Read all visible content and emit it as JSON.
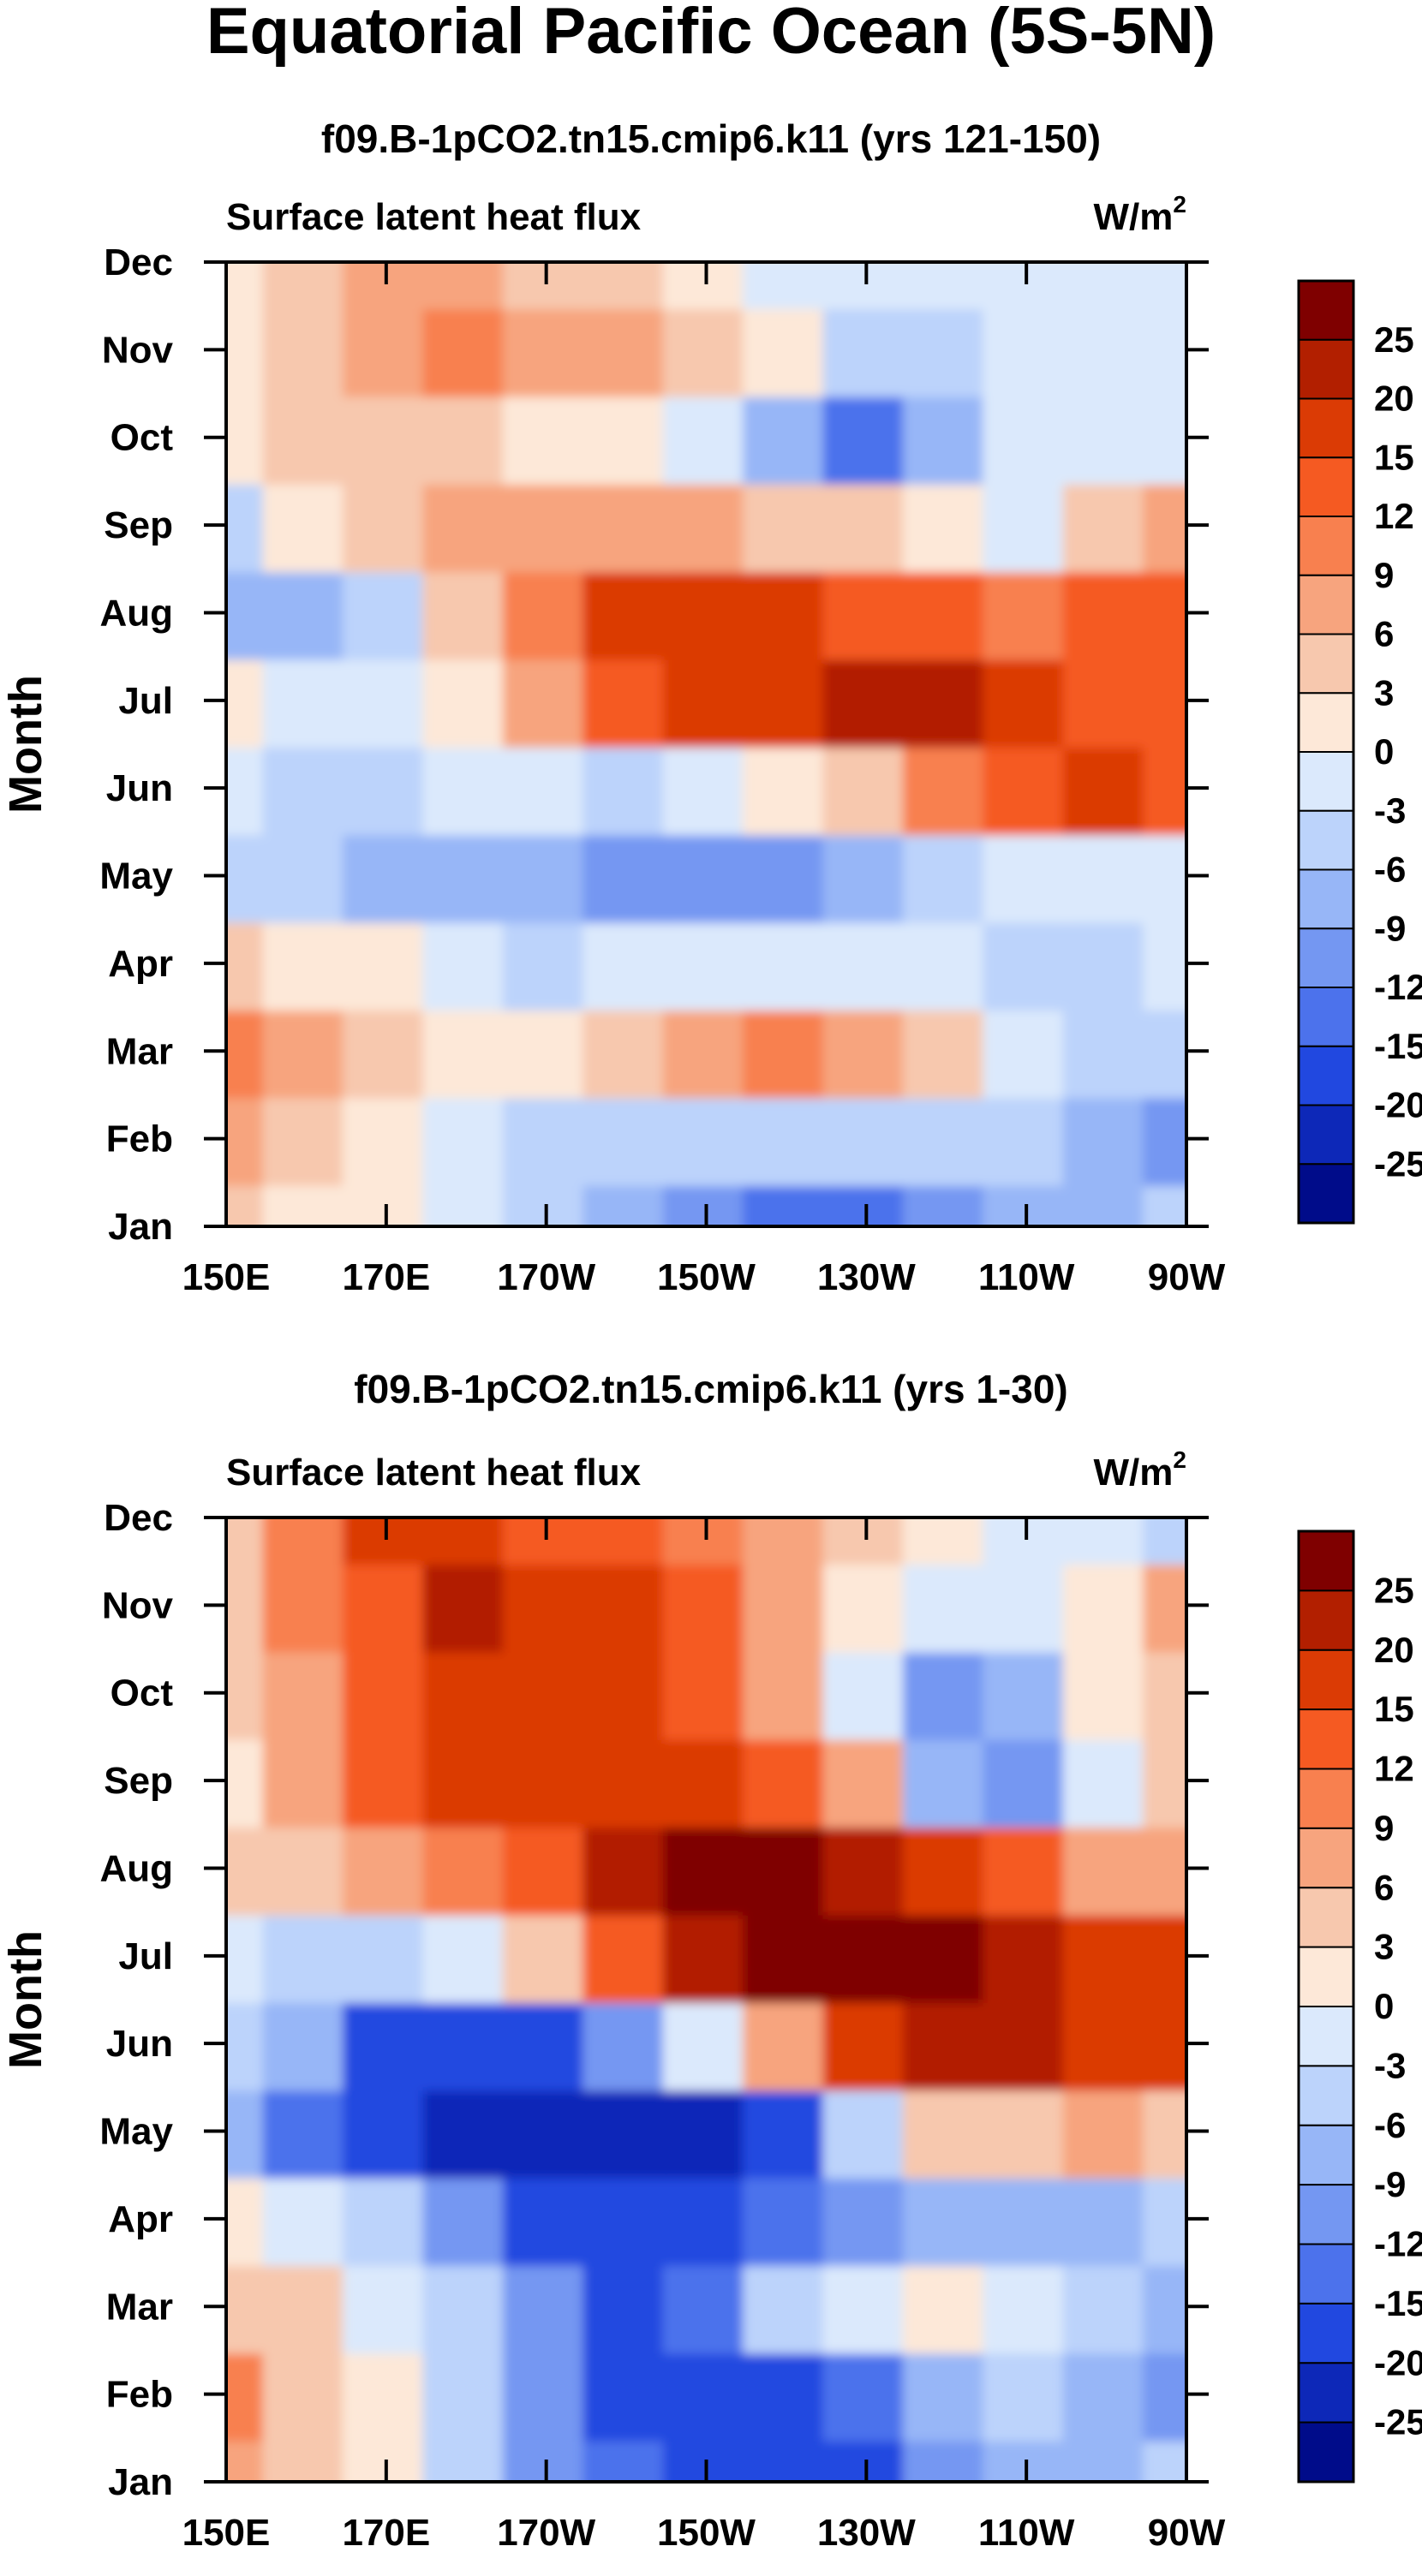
{
  "figure": {
    "title": "Equatorial Pacific Ocean (5S-5N)"
  },
  "colorbar": {
    "labels": [
      "25",
      "20",
      "15",
      "12",
      "9",
      "6",
      "3",
      "0",
      "-3",
      "-6",
      "-9",
      "-12",
      "-15",
      "-20",
      "-25"
    ],
    "colors_top_to_bottom": [
      "#7f0000",
      "#b21f00",
      "#db3b05",
      "#f55a22",
      "#f8804f",
      "#f7a47e",
      "#f7c8ae",
      "#fde8d8",
      "#dbe9fc",
      "#bcd3fb",
      "#97b6f7",
      "#7497f2",
      "#4c72ec",
      "#2148e0",
      "#0d28b8",
      "#000c8a"
    ]
  },
  "chart_data": [
    {
      "type": "heatmap",
      "panel_title": "f09.B-1pCO2.tn15.cmip6.k11 (yrs 121-150)",
      "left_label": "Surface latent heat flux",
      "right_label": "W/m",
      "right_label_sup": "2",
      "ylabel": "Month",
      "x_ticks": [
        "150E",
        "170E",
        "170W",
        "150W",
        "130W",
        "110W",
        "90W"
      ],
      "x_tick_values": [
        150,
        170,
        190,
        210,
        230,
        250,
        270
      ],
      "xlim": [
        150,
        270
      ],
      "y_ticks": [
        "Jan",
        "Feb",
        "Mar",
        "Apr",
        "May",
        "Jun",
        "Jul",
        "Aug",
        "Sep",
        "Oct",
        "Nov",
        "Dec"
      ],
      "units": "W/m2",
      "contour_levels": [
        -25,
        -20,
        -15,
        -12,
        -9,
        -6,
        -3,
        0,
        3,
        6,
        9,
        12,
        15,
        20,
        25
      ],
      "x_grid": [
        150,
        160,
        170,
        180,
        190,
        200,
        210,
        220,
        230,
        240,
        250,
        260,
        270
      ],
      "values": [
        [
          3,
          2,
          0,
          -3,
          -6,
          -9,
          -12,
          -15,
          -15,
          -12,
          -9,
          -9,
          -6
        ],
        [
          6,
          5,
          2,
          -3,
          -6,
          -6,
          -6,
          -6,
          -6,
          -6,
          -6,
          -9,
          -12
        ],
        [
          10,
          8,
          3,
          0,
          1,
          3,
          6,
          9,
          7,
          3,
          -3,
          -6,
          -6
        ],
        [
          3,
          2,
          0,
          -3,
          -4,
          -3,
          -3,
          -3,
          -3,
          -3,
          -4,
          -4,
          -3
        ],
        [
          -4,
          -6,
          -7,
          -8,
          -9,
          -10,
          -12,
          -12,
          -9,
          -6,
          -3,
          -2,
          -1
        ],
        [
          -2,
          -4,
          -4,
          -3,
          -3,
          -4,
          -3,
          0,
          3,
          9,
          12,
          15,
          12
        ],
        [
          1,
          -3,
          -2,
          2,
          6,
          13,
          17,
          19,
          21,
          20,
          15,
          14,
          14
        ],
        [
          -8,
          -9,
          -4,
          3,
          10,
          15,
          17,
          16,
          14,
          12,
          10,
          12,
          12
        ],
        [
          -5,
          0,
          3,
          7,
          8,
          7,
          6,
          3,
          3,
          0,
          -3,
          3,
          8
        ],
        [
          2,
          5,
          5,
          4,
          2,
          0,
          -3,
          -9,
          -13,
          -9,
          -3,
          -3,
          -3
        ],
        [
          1,
          4,
          6,
          9,
          7,
          7,
          3,
          0,
          -6,
          -6,
          -3,
          -3,
          -3
        ],
        [
          0,
          3,
          6,
          6,
          5,
          3,
          0,
          -3,
          -3,
          -3,
          -3,
          -3,
          -3
        ]
      ]
    },
    {
      "type": "heatmap",
      "panel_title": "f09.B-1pCO2.tn15.cmip6.k11 (yrs 1-30)",
      "left_label": "Surface latent heat flux",
      "right_label": "W/m",
      "right_label_sup": "2",
      "ylabel": "Month",
      "x_ticks": [
        "150E",
        "170E",
        "170W",
        "150W",
        "130W",
        "110W",
        "90W"
      ],
      "x_tick_values": [
        150,
        170,
        190,
        210,
        230,
        250,
        270
      ],
      "xlim": [
        150,
        270
      ],
      "y_ticks": [
        "Jan",
        "Feb",
        "Mar",
        "Apr",
        "May",
        "Jun",
        "Jul",
        "Aug",
        "Sep",
        "Oct",
        "Nov",
        "Dec"
      ],
      "units": "W/m2",
      "contour_levels": [
        -25,
        -20,
        -15,
        -12,
        -9,
        -6,
        -3,
        0,
        3,
        6,
        9,
        12,
        15,
        20,
        25
      ],
      "x_grid": [
        150,
        160,
        170,
        180,
        190,
        200,
        210,
        220,
        230,
        240,
        250,
        260,
        270
      ],
      "values": [
        [
          6,
          3,
          0,
          -6,
          -12,
          -15,
          -18,
          -20,
          -16,
          -12,
          -9,
          -9,
          -6
        ],
        [
          10,
          5,
          1,
          -5,
          -12,
          -16,
          -18,
          -20,
          -14,
          -9,
          -6,
          -9,
          -12
        ],
        [
          4,
          3,
          -1,
          -6,
          -12,
          -16,
          -13,
          -6,
          -1,
          1,
          -3,
          -6,
          -9
        ],
        [
          1,
          -3,
          -6,
          -12,
          -18,
          -20,
          -18,
          -15,
          -12,
          -9,
          -9,
          -9,
          -6
        ],
        [
          -9,
          -15,
          -18,
          -22,
          -25,
          -24,
          -21,
          -18,
          -6,
          3,
          5,
          6,
          4
        ],
        [
          -6,
          -9,
          -16,
          -18,
          -18,
          -12,
          -3,
          6,
          15,
          20,
          24,
          18,
          15
        ],
        [
          -3,
          -6,
          -6,
          -3,
          3,
          12,
          20,
          26,
          27,
          26,
          22,
          18,
          16
        ],
        [
          3,
          3,
          6,
          9,
          14,
          22,
          27,
          27,
          24,
          18,
          12,
          6,
          8
        ],
        [
          1,
          6,
          12,
          15,
          17,
          19,
          18,
          12,
          6,
          -9,
          -12,
          -3,
          5
        ],
        [
          3,
          6,
          12,
          17,
          18,
          16,
          12,
          6,
          -3,
          -12,
          -9,
          0,
          3
        ],
        [
          4,
          9,
          14,
          20,
          18,
          15,
          12,
          6,
          0,
          -3,
          -3,
          0,
          6
        ],
        [
          5,
          9,
          15,
          16,
          14,
          12,
          9,
          6,
          3,
          0,
          -3,
          -3,
          -6
        ]
      ]
    }
  ]
}
